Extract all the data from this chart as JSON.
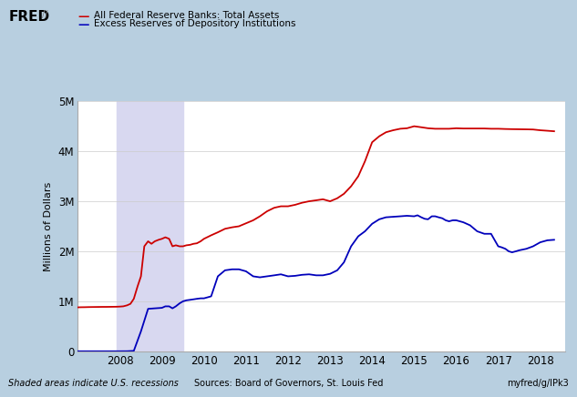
{
  "legend_red": "All Federal Reserve Banks: Total Assets",
  "legend_blue": "Excess Reserves of Depository Institutions",
  "ylabel": "Millions of Dollars",
  "recession_start": 2007.92,
  "recession_end": 2009.5,
  "background_color": "#b8cfe0",
  "plot_bg_color": "#ffffff",
  "recession_color": "#d8d8f0",
  "red_color": "#cc0000",
  "blue_color": "#0000bb",
  "ylim": [
    0,
    5000000
  ],
  "yticks": [
    0,
    1000000,
    2000000,
    3000000,
    4000000,
    5000000
  ],
  "ytick_labels": [
    "0",
    "1M",
    "2M",
    "3M",
    "4M",
    "5M"
  ],
  "xlim_start": 2007.0,
  "xlim_end": 2018.6,
  "xticks": [
    2008,
    2009,
    2010,
    2011,
    2012,
    2013,
    2014,
    2015,
    2016,
    2017,
    2018
  ],
  "footer_left": "Shaded areas indicate U.S. recessions",
  "footer_center": "Sources: Board of Governors, St. Louis Fed",
  "footer_right": "myfred/g/IPk3",
  "fred_text": "FRED",
  "total_assets": {
    "years": [
      2007.0,
      2007.08,
      2007.17,
      2007.25,
      2007.33,
      2007.42,
      2007.5,
      2007.58,
      2007.67,
      2007.75,
      2007.83,
      2007.92,
      2008.0,
      2008.08,
      2008.17,
      2008.25,
      2008.33,
      2008.42,
      2008.5,
      2008.58,
      2008.67,
      2008.75,
      2008.83,
      2008.92,
      2009.0,
      2009.08,
      2009.17,
      2009.25,
      2009.33,
      2009.42,
      2009.5,
      2009.58,
      2009.67,
      2009.75,
      2009.83,
      2009.92,
      2010.0,
      2010.17,
      2010.33,
      2010.5,
      2010.67,
      2010.83,
      2011.0,
      2011.17,
      2011.33,
      2011.5,
      2011.67,
      2011.83,
      2012.0,
      2012.17,
      2012.33,
      2012.5,
      2012.67,
      2012.83,
      2013.0,
      2013.17,
      2013.33,
      2013.5,
      2013.67,
      2013.83,
      2014.0,
      2014.17,
      2014.33,
      2014.5,
      2014.67,
      2014.83,
      2015.0,
      2015.17,
      2015.33,
      2015.5,
      2015.67,
      2015.83,
      2016.0,
      2016.17,
      2016.33,
      2016.5,
      2016.67,
      2016.83,
      2017.0,
      2017.17,
      2017.33,
      2017.5,
      2017.67,
      2017.83,
      2018.0,
      2018.17,
      2018.33
    ],
    "values": [
      880000,
      882000,
      883000,
      885000,
      886000,
      887000,
      888000,
      889000,
      889000,
      890000,
      891000,
      892000,
      895000,
      900000,
      920000,
      950000,
      1050000,
      1300000,
      1500000,
      2100000,
      2200000,
      2150000,
      2200000,
      2230000,
      2250000,
      2280000,
      2250000,
      2100000,
      2120000,
      2100000,
      2100000,
      2120000,
      2130000,
      2150000,
      2160000,
      2200000,
      2250000,
      2320000,
      2380000,
      2450000,
      2480000,
      2500000,
      2560000,
      2620000,
      2700000,
      2800000,
      2870000,
      2900000,
      2900000,
      2930000,
      2970000,
      3000000,
      3020000,
      3040000,
      3000000,
      3060000,
      3150000,
      3300000,
      3500000,
      3800000,
      4180000,
      4300000,
      4380000,
      4420000,
      4450000,
      4460000,
      4500000,
      4480000,
      4460000,
      4450000,
      4450000,
      4450000,
      4460000,
      4455000,
      4455000,
      4455000,
      4455000,
      4450000,
      4450000,
      4445000,
      4442000,
      4440000,
      4438000,
      4435000,
      4420000,
      4410000,
      4400000
    ]
  },
  "excess_reserves": {
    "years": [
      2007.0,
      2007.17,
      2007.33,
      2007.5,
      2007.67,
      2007.83,
      2008.0,
      2008.17,
      2008.33,
      2008.5,
      2008.67,
      2008.83,
      2009.0,
      2009.08,
      2009.17,
      2009.25,
      2009.33,
      2009.42,
      2009.5,
      2009.58,
      2009.67,
      2009.75,
      2009.83,
      2009.92,
      2010.0,
      2010.17,
      2010.33,
      2010.5,
      2010.67,
      2010.83,
      2011.0,
      2011.17,
      2011.33,
      2011.5,
      2011.67,
      2011.83,
      2012.0,
      2012.17,
      2012.33,
      2012.5,
      2012.67,
      2012.83,
      2013.0,
      2013.17,
      2013.33,
      2013.5,
      2013.67,
      2013.83,
      2014.0,
      2014.17,
      2014.33,
      2014.5,
      2014.67,
      2014.83,
      2015.0,
      2015.08,
      2015.17,
      2015.25,
      2015.33,
      2015.42,
      2015.5,
      2015.58,
      2015.67,
      2015.75,
      2015.83,
      2015.92,
      2016.0,
      2016.17,
      2016.33,
      2016.5,
      2016.67,
      2016.83,
      2017.0,
      2017.08,
      2017.17,
      2017.25,
      2017.33,
      2017.42,
      2017.5,
      2017.67,
      2017.83,
      2018.0,
      2018.17,
      2018.33
    ],
    "values": [
      2000,
      2000,
      2000,
      2000,
      2000,
      2000,
      2000,
      3000,
      10000,
      400000,
      850000,
      860000,
      870000,
      900000,
      900000,
      860000,
      900000,
      960000,
      1000000,
      1020000,
      1030000,
      1040000,
      1050000,
      1060000,
      1060000,
      1100000,
      1500000,
      1620000,
      1640000,
      1640000,
      1600000,
      1500000,
      1480000,
      1500000,
      1520000,
      1540000,
      1500000,
      1510000,
      1530000,
      1540000,
      1520000,
      1520000,
      1550000,
      1620000,
      1780000,
      2100000,
      2300000,
      2400000,
      2550000,
      2640000,
      2680000,
      2690000,
      2700000,
      2710000,
      2700000,
      2720000,
      2680000,
      2650000,
      2640000,
      2700000,
      2700000,
      2680000,
      2660000,
      2620000,
      2600000,
      2620000,
      2620000,
      2580000,
      2520000,
      2400000,
      2350000,
      2350000,
      2100000,
      2080000,
      2050000,
      2000000,
      1980000,
      2000000,
      2020000,
      2050000,
      2100000,
      2180000,
      2220000,
      2230000
    ]
  }
}
